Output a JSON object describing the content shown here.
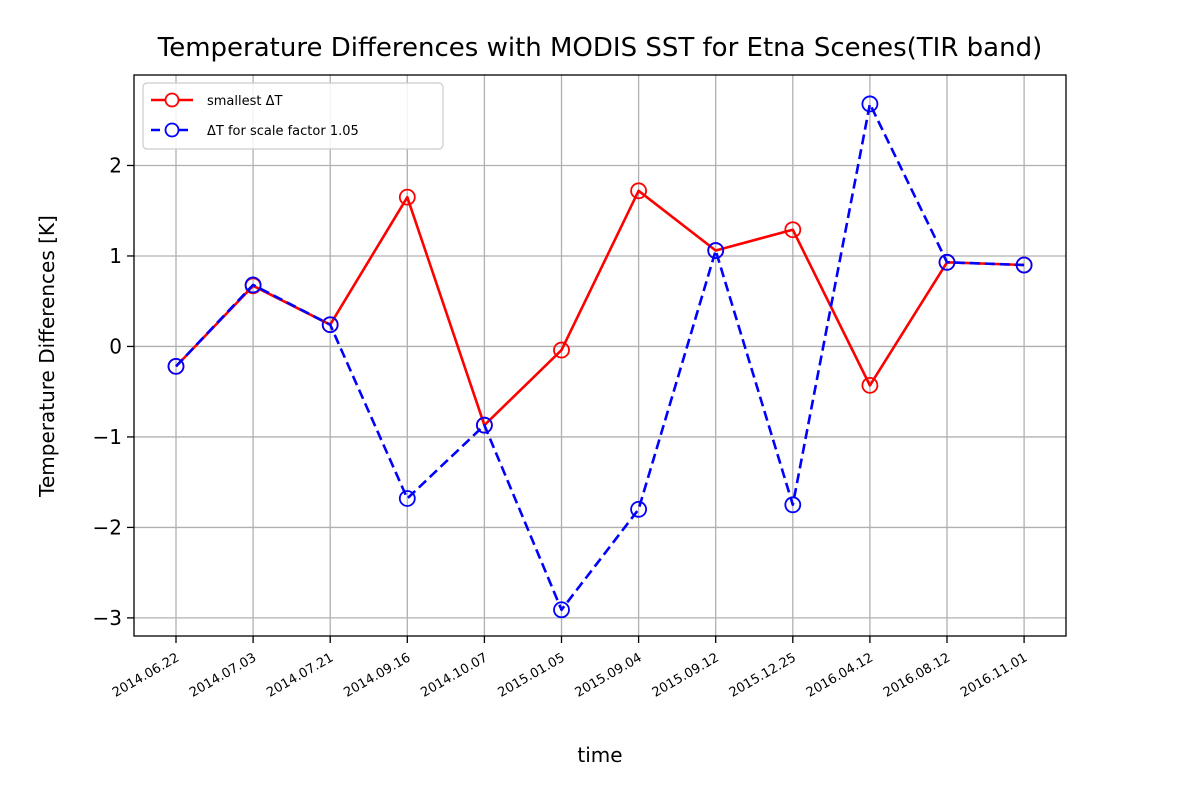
{
  "chart_data": {
    "type": "line",
    "title": "Temperature Differences with MODIS SST for Etna Scenes(TIR band)",
    "xlabel": "time",
    "ylabel": "Temperature Differences [K]",
    "categories": [
      "2014.06.22",
      "2014.07.03",
      "2014.07.21",
      "2014.09.16",
      "2014.10.07",
      "2015.01.05",
      "2015.09.04",
      "2015.09.12",
      "2015.12.25",
      "2016.04.12",
      "2016.08.12",
      "2016.11.01"
    ],
    "ylim": [
      -3.2,
      3.0
    ],
    "yticks": [
      -3,
      -2,
      -1,
      0,
      1,
      2
    ],
    "ytick_labels": [
      "−3",
      "−2",
      "−1",
      "0",
      "1",
      "2"
    ],
    "grid": true,
    "legend_position": "upper-left",
    "series": [
      {
        "name": "smallest ΔT",
        "color": "#ff0000",
        "linestyle": "solid",
        "marker": "open-circle",
        "values": [
          -0.22,
          0.67,
          0.24,
          1.65,
          -0.87,
          -0.04,
          1.72,
          1.06,
          1.29,
          -0.43,
          0.93,
          0.9
        ]
      },
      {
        "name": "ΔT for scale factor 1.05",
        "color": "#0000ff",
        "linestyle": "dashed",
        "marker": "open-circle",
        "values": [
          -0.22,
          0.68,
          0.24,
          -1.68,
          -0.87,
          -2.91,
          -1.8,
          1.06,
          -1.75,
          2.68,
          0.93,
          0.9
        ]
      }
    ]
  }
}
